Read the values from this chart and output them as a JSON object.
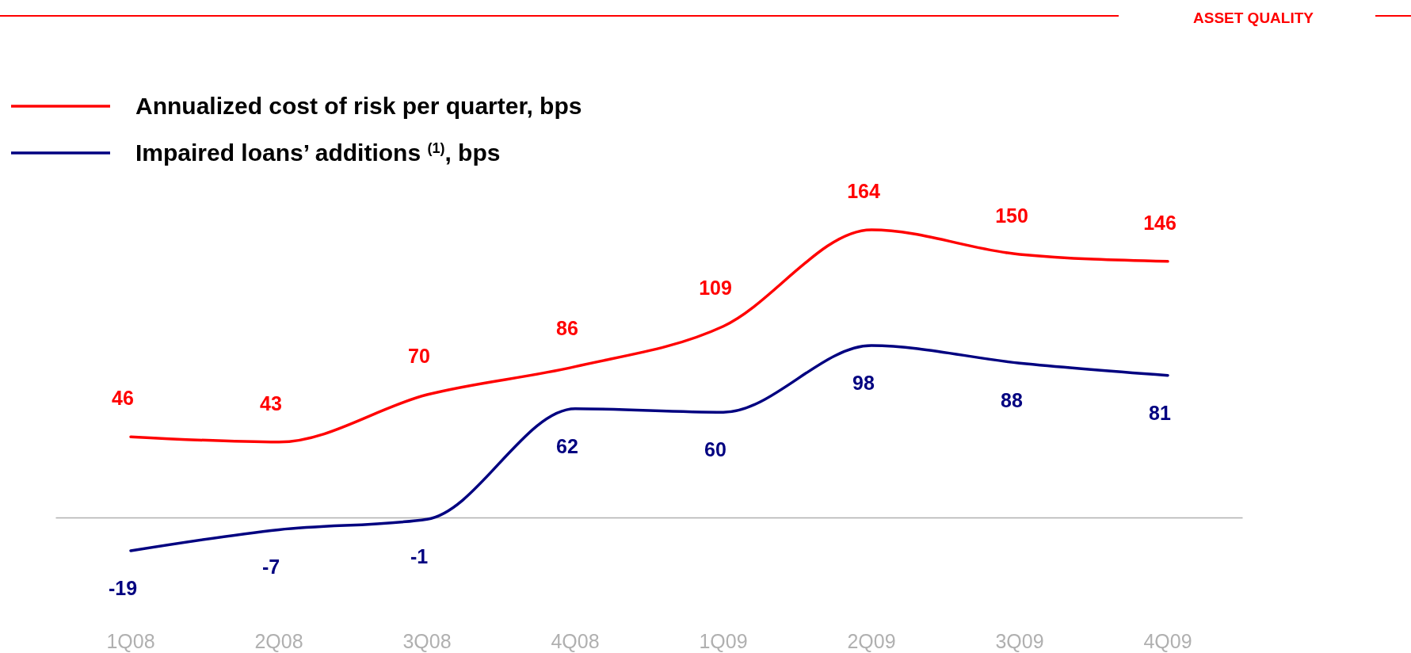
{
  "chart_data": {
    "type": "line",
    "title": "ASSET QUALITY",
    "categories": [
      "1Q08",
      "2Q08",
      "3Q08",
      "4Q08",
      "1Q09",
      "2Q09",
      "3Q09",
      "4Q09"
    ],
    "series": [
      {
        "name": "Annualized cost of risk per quarter, bps",
        "color": "#ff0000",
        "values": [
          46,
          43,
          70,
          86,
          109,
          164,
          150,
          146
        ]
      },
      {
        "name": "Impaired loans’ additions $^{(1)}$, bps",
        "color": "#000080",
        "values": [
          -19,
          -7,
          -1,
          62,
          60,
          98,
          88,
          81
        ]
      }
    ],
    "tick_labels": "x",
    "data_labels": true,
    "legend": "top left",
    "marker": "none",
    "line_style": "solid"
  }
}
